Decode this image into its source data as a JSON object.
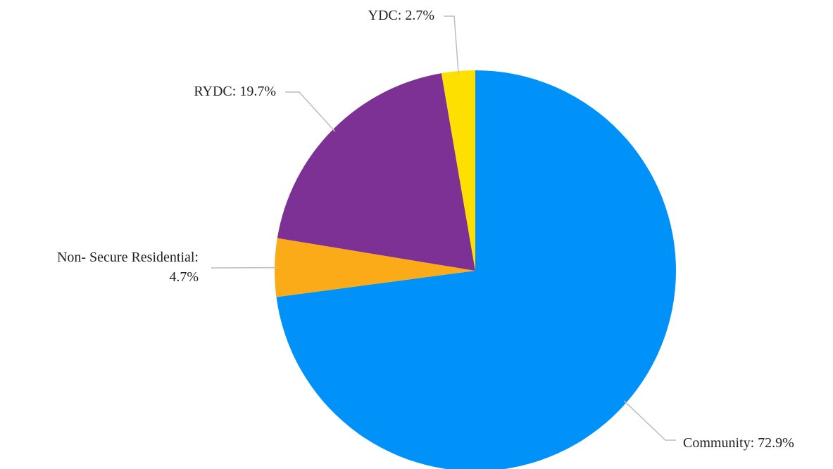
{
  "chart_data": {
    "type": "pie",
    "values": [
      72.9,
      4.7,
      19.7,
      2.7
    ],
    "value_labels": [
      [
        "Community: 72.9%"
      ],
      [
        "Non- Secure Residential:",
        "4.7%"
      ],
      [
        "RYDC: 19.7%"
      ],
      [
        "YDC: 2.7%"
      ]
    ],
    "colors": [
      "#0092f9",
      "#fbab18",
      "#7e3194",
      "#fee000"
    ]
  }
}
